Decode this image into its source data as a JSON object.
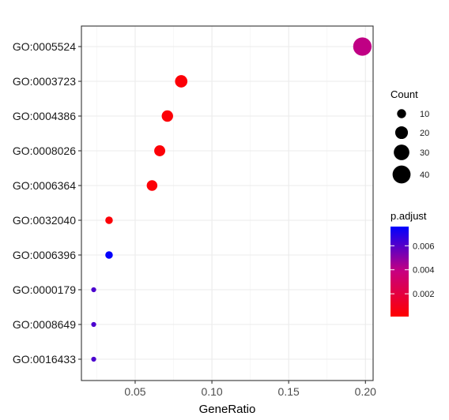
{
  "chart_data": {
    "type": "scatter",
    "title": "",
    "xlabel": "GeneRatio",
    "ylabel": "",
    "xlim": [
      0.015,
      0.205
    ],
    "x_ticks": [
      0.05,
      0.1,
      0.15,
      0.2
    ],
    "x_tick_labels": [
      "0.05",
      "0.10",
      "0.15",
      "0.20"
    ],
    "grid": true,
    "categories": [
      "GO:0005524",
      "GO:0003723",
      "GO:0004386",
      "GO:0008026",
      "GO:0006364",
      "GO:0032040",
      "GO:0006396",
      "GO:0000179",
      "GO:0008649",
      "GO:0016433"
    ],
    "points": [
      {
        "term": "GO:0005524",
        "gene_ratio": 0.198,
        "count": 42,
        "p_adjust": 0.004
      },
      {
        "term": "GO:0003723",
        "gene_ratio": 0.08,
        "count": 19,
        "p_adjust": 0.0003
      },
      {
        "term": "GO:0004386",
        "gene_ratio": 0.071,
        "count": 16,
        "p_adjust": 0.0003
      },
      {
        "term": "GO:0008026",
        "gene_ratio": 0.066,
        "count": 15,
        "p_adjust": 0.0003
      },
      {
        "term": "GO:0006364",
        "gene_ratio": 0.061,
        "count": 14,
        "p_adjust": 0.0003
      },
      {
        "term": "GO:0032040",
        "gene_ratio": 0.033,
        "count": 7,
        "p_adjust": 0.0003
      },
      {
        "term": "GO:0006396",
        "gene_ratio": 0.033,
        "count": 7,
        "p_adjust": 0.0075
      },
      {
        "term": "GO:0000179",
        "gene_ratio": 0.023,
        "count": 3,
        "p_adjust": 0.0062
      },
      {
        "term": "GO:0008649",
        "gene_ratio": 0.023,
        "count": 3,
        "p_adjust": 0.0062
      },
      {
        "term": "GO:0016433",
        "gene_ratio": 0.023,
        "count": 3,
        "p_adjust": 0.0062
      }
    ],
    "size_legend": {
      "title": "Count",
      "values": [
        10,
        20,
        30,
        40
      ],
      "labels": [
        "10",
        "20",
        "30",
        "40"
      ]
    },
    "color_legend": {
      "title": "p.adjust",
      "range": [
        0.0001,
        0.0076
      ],
      "ticks": [
        0.002,
        0.004,
        0.006
      ],
      "tick_labels": [
        "0.002",
        "0.004",
        "0.006"
      ],
      "low_color": "#ff0000",
      "high_color": "#0000ff"
    },
    "legend_position": "right"
  }
}
